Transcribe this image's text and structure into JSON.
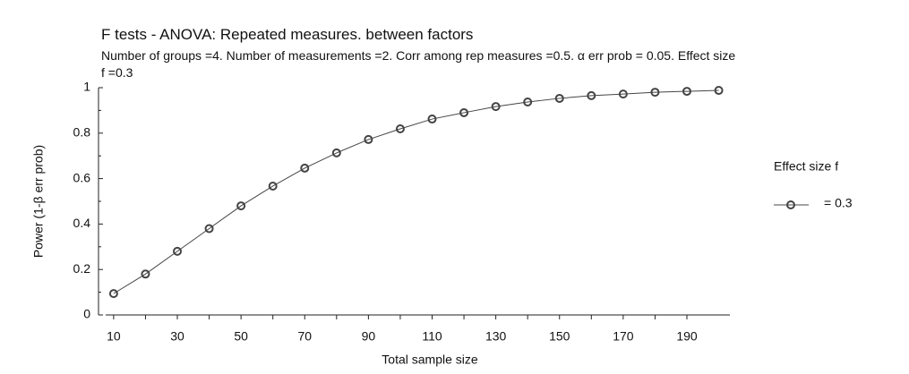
{
  "chart_data": {
    "type": "line",
    "title": "F tests - ANOVA: Repeated measures. between factors",
    "subtitle": "Number of groups =4. Number of measurements =2. Corr among rep measures =0.5. α err prob = 0.05. Effect size f =0.3",
    "x_label": "Total sample size",
    "y_label": "Power (1-β err prob)",
    "legend_title": "Effect size f",
    "x": [
      10,
      20,
      30,
      40,
      50,
      60,
      70,
      80,
      90,
      100,
      110,
      120,
      130,
      140,
      150,
      160,
      170,
      180,
      190,
      200
    ],
    "series": [
      {
        "name": "= 0.3",
        "color": "#444444",
        "values": [
          0.094,
          0.18,
          0.28,
          0.38,
          0.48,
          0.567,
          0.646,
          0.713,
          0.772,
          0.819,
          0.862,
          0.89,
          0.917,
          0.937,
          0.953,
          0.965,
          0.972,
          0.98,
          0.984,
          0.988
        ]
      }
    ],
    "xlim": [
      7.5,
      203.5
    ],
    "xticks": [
      10,
      30,
      50,
      70,
      90,
      110,
      130,
      150,
      170,
      190
    ],
    "ylim": [
      0,
      1
    ],
    "yticks": [
      0,
      0.2,
      0.4,
      0.6,
      0.8,
      1
    ],
    "grid": false,
    "legend": "right"
  }
}
